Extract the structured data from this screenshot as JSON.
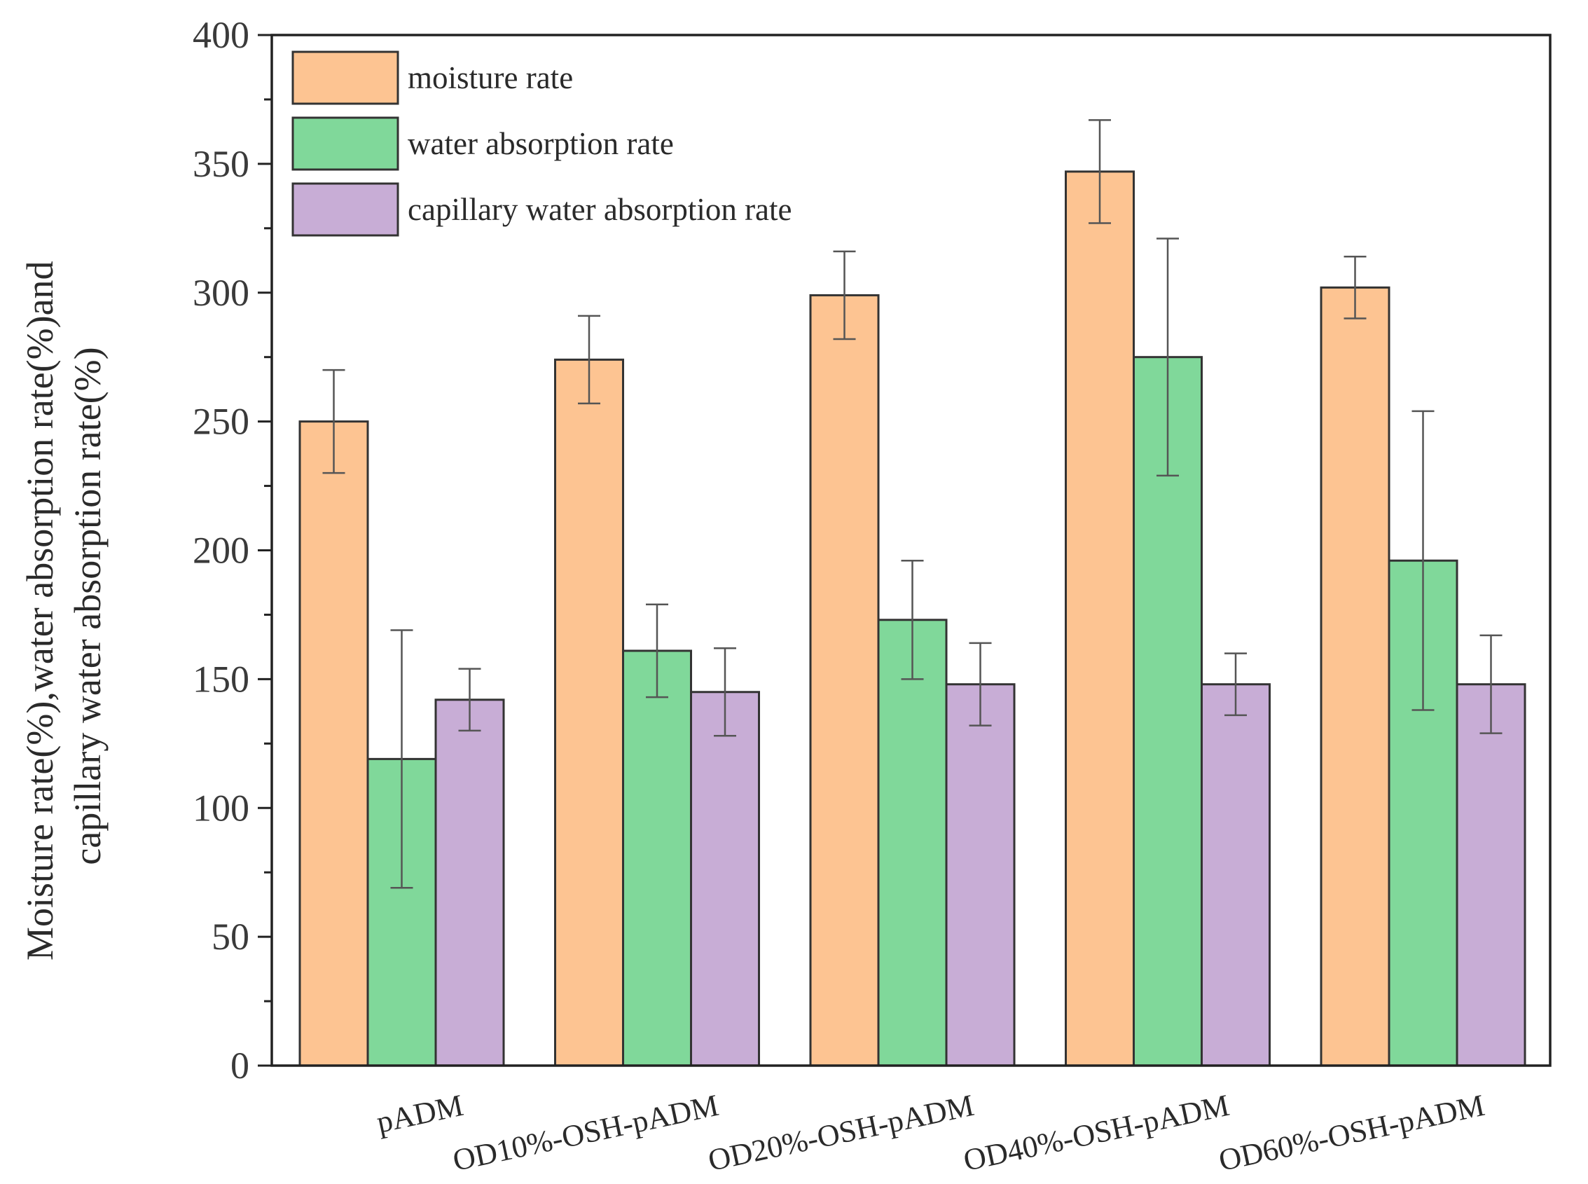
{
  "chart_data": {
    "type": "bar",
    "title": "",
    "xlabel": "",
    "ylabel_lines": [
      "Moisture rate(%),water absorption rate(%)and",
      "capillary water absorption rate(%)"
    ],
    "ylim": [
      0,
      400
    ],
    "yticks": [
      "0",
      "50",
      "100",
      "150",
      "200",
      "250",
      "300",
      "350",
      "400"
    ],
    "ytick_values": [
      0,
      50,
      100,
      150,
      200,
      250,
      300,
      350,
      400
    ],
    "categories": [
      "pADM",
      "OD10%-OSH-pADM",
      "OD20%-OSH-pADM",
      "OD40%-OSH-pADM",
      "OD60%-OSH-pADM"
    ],
    "legend_position": "top-left",
    "grid": false,
    "series": [
      {
        "name": "moisture rate",
        "color": "#FDC492",
        "values": [
          250,
          274,
          299,
          347,
          302
        ],
        "errors": [
          20,
          17,
          17,
          20,
          12
        ]
      },
      {
        "name": "water absorption rate",
        "color": "#80D89A",
        "values": [
          119,
          161,
          173,
          275,
          196
        ],
        "errors": [
          50,
          18,
          23,
          46,
          58
        ]
      },
      {
        "name": "capillary water absorption rate",
        "color": "#C8ADD6",
        "values": [
          142,
          145,
          148,
          148,
          148
        ],
        "errors": [
          12,
          17,
          16,
          12,
          19
        ]
      }
    ]
  }
}
